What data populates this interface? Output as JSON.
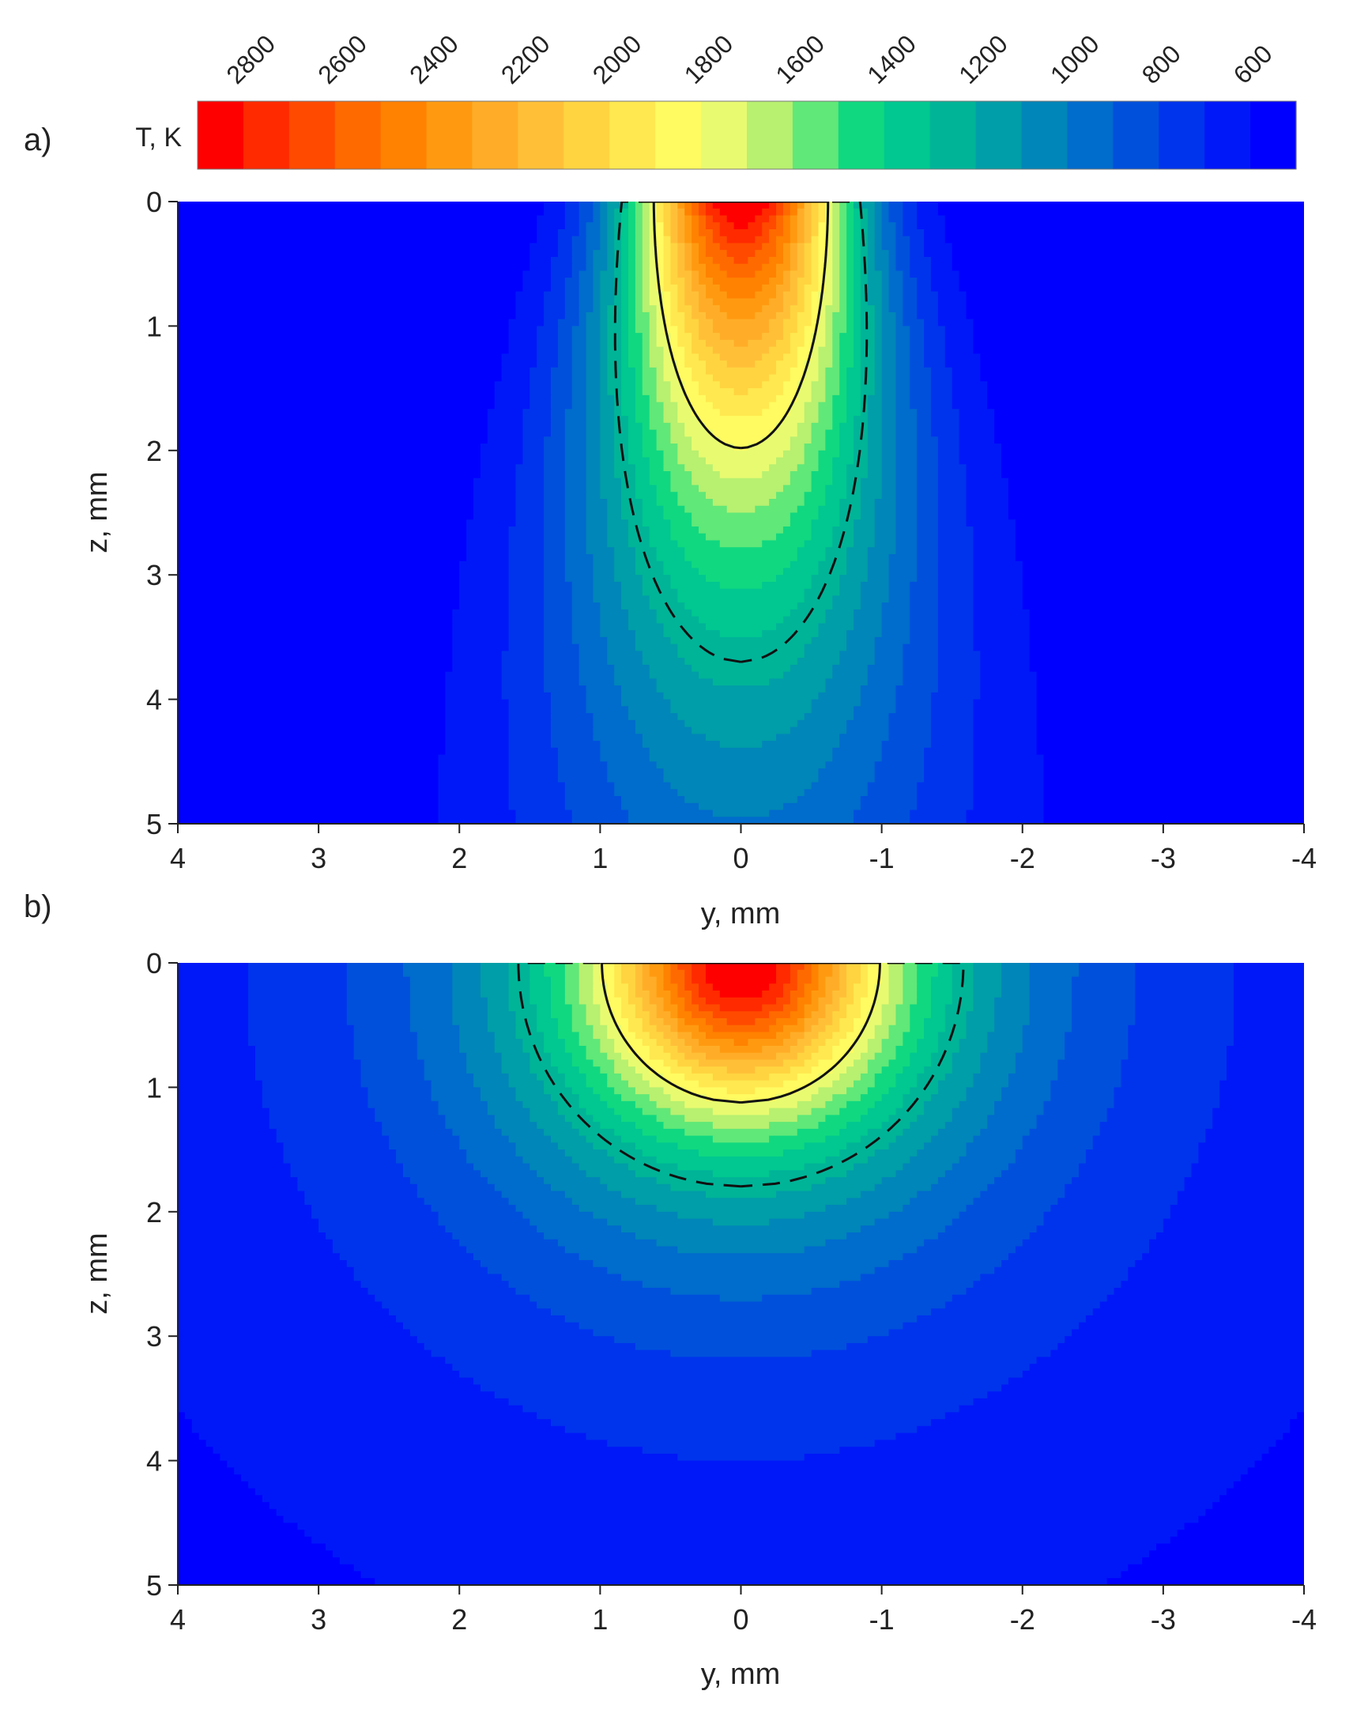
{
  "chart_data": [
    {
      "type": "heatmap",
      "panel": "a)",
      "colorbar": {
        "label": "T, K",
        "ticks": [
          "2800",
          "2600",
          "2400",
          "2200",
          "2000",
          "1800",
          "1600",
          "1400",
          "1200",
          "1000",
          "800",
          "600"
        ],
        "levels": [
          2900,
          2800,
          2700,
          2600,
          2500,
          2400,
          2300,
          2200,
          2100,
          2000,
          1900,
          1800,
          1700,
          1600,
          1500,
          1400,
          1300,
          1200,
          1100,
          1000,
          900,
          800,
          700,
          600,
          500
        ],
        "colors": [
          "#ff0000",
          "#ff2a00",
          "#ff4a00",
          "#ff6a00",
          "#ff8200",
          "#ff9a10",
          "#ffad28",
          "#ffc038",
          "#ffd440",
          "#ffe850",
          "#fffb60",
          "#e8fb70",
          "#b8f070",
          "#60e878",
          "#10d880",
          "#00c890",
          "#00b498",
          "#009ea8",
          "#0086b8",
          "#006ccc",
          "#0050dc",
          "#0034ec",
          "#0018f8",
          "#0000ff"
        ]
      },
      "xlabel": "y, mm",
      "ylabel": "z, mm",
      "xlim": [
        4,
        -4
      ],
      "ylim": [
        5,
        0
      ],
      "xticks": [
        "4",
        "3",
        "2",
        "1",
        "0",
        "-1",
        "-2",
        "-3",
        "-4"
      ],
      "yticks": [
        "0",
        "1",
        "2",
        "3",
        "4",
        "5"
      ],
      "model": {
        "T0": 500,
        "Tmax": 2950,
        "width_base": 0.55,
        "width_slope": 0.13,
        "depth_decay": 0.32
      },
      "solid_contour_T": 1800,
      "dashed_contour_T": 1250
    },
    {
      "type": "heatmap",
      "panel": "b)",
      "xlabel": "y, mm",
      "ylabel": "z, mm",
      "xlim": [
        4,
        -4
      ],
      "ylim": [
        5,
        0
      ],
      "xticks": [
        "4",
        "3",
        "2",
        "1",
        "0",
        "-1",
        "-2",
        "-3",
        "-4"
      ],
      "yticks": [
        "0",
        "1",
        "2",
        "3",
        "4",
        "5"
      ],
      "model": {
        "T0": 500,
        "Tmax": 2950,
        "r0": 1.05,
        "depth_scale": 0.88,
        "power": 1.0
      },
      "solid_contour_T": 1800,
      "dashed_contour_T": 1250
    }
  ]
}
